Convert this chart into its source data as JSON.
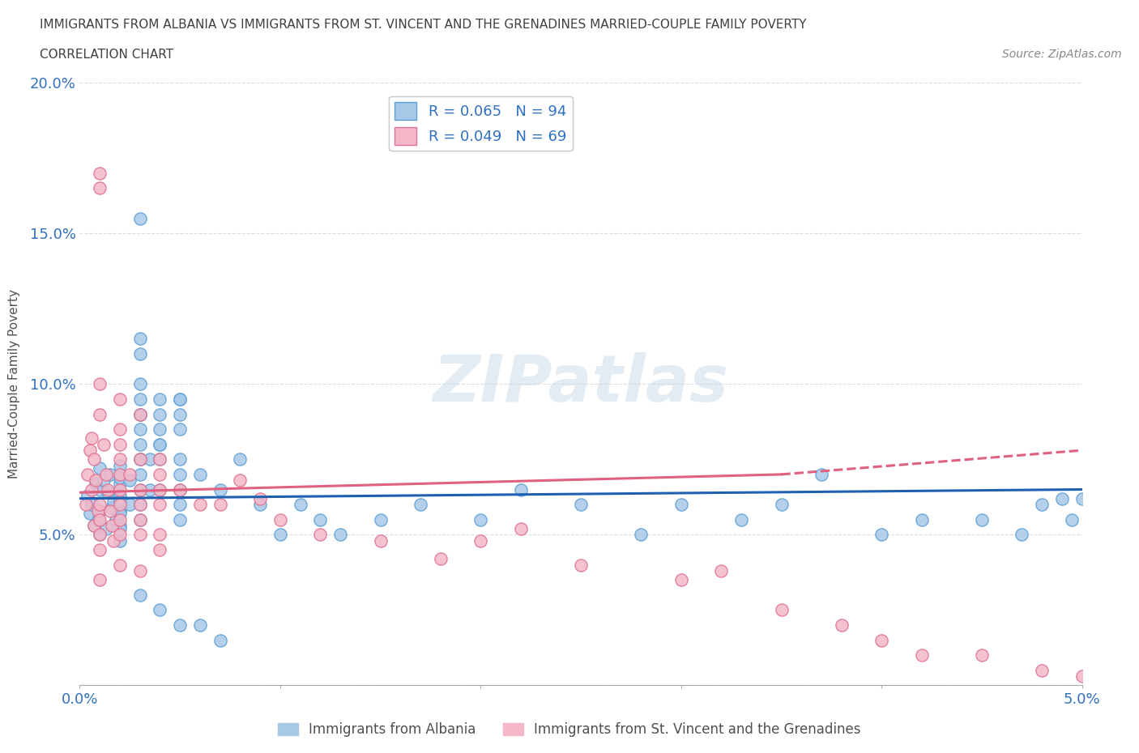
{
  "title_line1": "IMMIGRANTS FROM ALBANIA VS IMMIGRANTS FROM ST. VINCENT AND THE GRENADINES MARRIED-COUPLE FAMILY POVERTY",
  "title_line2": "CORRELATION CHART",
  "source": "Source: ZipAtlas.com",
  "ylabel": "Married-Couple Family Poverty",
  "xlim": [
    0.0,
    0.05
  ],
  "ylim": [
    0.0,
    0.2
  ],
  "xtick_positions": [
    0.0,
    0.01,
    0.02,
    0.03,
    0.04,
    0.05
  ],
  "xticklabels": [
    "0.0%",
    "",
    "",
    "",
    "",
    "5.0%"
  ],
  "ytick_positions": [
    0.0,
    0.05,
    0.1,
    0.15,
    0.2
  ],
  "yticklabels": [
    "",
    "5.0%",
    "10.0%",
    "15.0%",
    "20.0%"
  ],
  "series1_color": "#a8c8e8",
  "series1_edge": "#5a9fd4",
  "series2_color": "#f4b8c8",
  "series2_edge": "#e07090",
  "regression1_color": "#2060b0",
  "regression2_color": "#e06080",
  "regression2_dash_color": "#e06080",
  "R1": 0.065,
  "N1": 94,
  "R2": 0.049,
  "N2": 69,
  "legend_label1": "Immigrants from Albania",
  "legend_label2": "Immigrants from St. Vincent and the Grenadines",
  "watermark": "ZIPatlas",
  "background_color": "#ffffff",
  "grid_color": "#dddddd",
  "title_color": "#404040",
  "axis_color": "#3070c0",
  "seed": 42,
  "scatter1_x": [
    0.0004,
    0.0005,
    0.0006,
    0.0007,
    0.0008,
    0.0009,
    0.001,
    0.001,
    0.001,
    0.001,
    0.0012,
    0.0013,
    0.0014,
    0.0015,
    0.0016,
    0.0017,
    0.0018,
    0.002,
    0.002,
    0.002,
    0.002,
    0.002,
    0.002,
    0.002,
    0.002,
    0.002,
    0.002,
    0.002,
    0.0025,
    0.0025,
    0.003,
    0.003,
    0.003,
    0.003,
    0.003,
    0.003,
    0.003,
    0.003,
    0.003,
    0.003,
    0.003,
    0.003,
    0.003,
    0.003,
    0.003,
    0.0035,
    0.0035,
    0.004,
    0.004,
    0.004,
    0.004,
    0.004,
    0.004,
    0.004,
    0.005,
    0.005,
    0.005,
    0.005,
    0.005,
    0.005,
    0.005,
    0.005,
    0.005,
    0.006,
    0.007,
    0.008,
    0.009,
    0.01,
    0.011,
    0.012,
    0.013,
    0.015,
    0.017,
    0.02,
    0.022,
    0.025,
    0.028,
    0.03,
    0.033,
    0.035,
    0.037,
    0.04,
    0.042,
    0.045,
    0.047,
    0.048,
    0.049,
    0.0495,
    0.05,
    0.003,
    0.004,
    0.005,
    0.006,
    0.007
  ],
  "scatter1_y": [
    0.063,
    0.057,
    0.06,
    0.053,
    0.067,
    0.055,
    0.065,
    0.05,
    0.072,
    0.058,
    0.068,
    0.052,
    0.064,
    0.07,
    0.059,
    0.061,
    0.055,
    0.063,
    0.058,
    0.073,
    0.067,
    0.053,
    0.048,
    0.059,
    0.061,
    0.069,
    0.057,
    0.052,
    0.06,
    0.068,
    0.095,
    0.09,
    0.085,
    0.075,
    0.11,
    0.115,
    0.155,
    0.065,
    0.07,
    0.075,
    0.08,
    0.06,
    0.055,
    0.09,
    0.1,
    0.065,
    0.075,
    0.085,
    0.08,
    0.09,
    0.075,
    0.065,
    0.095,
    0.08,
    0.095,
    0.095,
    0.09,
    0.085,
    0.075,
    0.07,
    0.065,
    0.06,
    0.055,
    0.07,
    0.065,
    0.075,
    0.06,
    0.05,
    0.06,
    0.055,
    0.05,
    0.055,
    0.06,
    0.055,
    0.065,
    0.06,
    0.05,
    0.06,
    0.055,
    0.06,
    0.07,
    0.05,
    0.055,
    0.055,
    0.05,
    0.06,
    0.062,
    0.055,
    0.062,
    0.03,
    0.025,
    0.02,
    0.02,
    0.015
  ],
  "scatter2_x": [
    0.0003,
    0.0004,
    0.0005,
    0.0006,
    0.0006,
    0.0007,
    0.0007,
    0.0008,
    0.0009,
    0.001,
    0.001,
    0.001,
    0.001,
    0.001,
    0.001,
    0.001,
    0.001,
    0.0012,
    0.0013,
    0.0014,
    0.0015,
    0.0016,
    0.0017,
    0.002,
    0.002,
    0.002,
    0.002,
    0.002,
    0.002,
    0.002,
    0.002,
    0.002,
    0.0025,
    0.003,
    0.003,
    0.003,
    0.003,
    0.003,
    0.003,
    0.004,
    0.004,
    0.004,
    0.004,
    0.004,
    0.004,
    0.005,
    0.006,
    0.007,
    0.008,
    0.009,
    0.01,
    0.012,
    0.015,
    0.018,
    0.02,
    0.022,
    0.025,
    0.03,
    0.032,
    0.035,
    0.038,
    0.04,
    0.042,
    0.045,
    0.048,
    0.05,
    0.001,
    0.002,
    0.003
  ],
  "scatter2_y": [
    0.06,
    0.07,
    0.078,
    0.065,
    0.082,
    0.053,
    0.075,
    0.068,
    0.058,
    0.17,
    0.165,
    0.1,
    0.09,
    0.06,
    0.055,
    0.05,
    0.045,
    0.08,
    0.07,
    0.065,
    0.058,
    0.053,
    0.048,
    0.085,
    0.095,
    0.08,
    0.075,
    0.07,
    0.065,
    0.06,
    0.055,
    0.05,
    0.07,
    0.09,
    0.075,
    0.065,
    0.06,
    0.055,
    0.05,
    0.075,
    0.07,
    0.065,
    0.06,
    0.05,
    0.045,
    0.065,
    0.06,
    0.06,
    0.068,
    0.062,
    0.055,
    0.05,
    0.048,
    0.042,
    0.048,
    0.052,
    0.04,
    0.035,
    0.038,
    0.025,
    0.02,
    0.015,
    0.01,
    0.01,
    0.005,
    0.003,
    0.035,
    0.04,
    0.038
  ]
}
